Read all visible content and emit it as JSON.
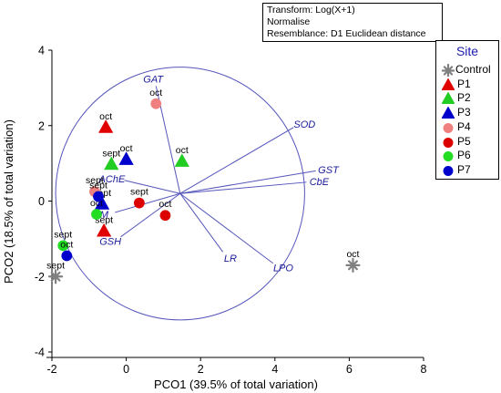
{
  "chart_data": {
    "type": "scatter",
    "info": [
      "Transform: Log(X+1)",
      "Normalise",
      "Resemblance: D1 Euclidean distance"
    ],
    "xlabel": "PCO1 (39.5% of total variation)",
    "ylabel": "PCO2 (18.5% of total variation)",
    "xlim": [
      -2,
      8
    ],
    "ylim": [
      -4,
      4
    ],
    "xticks": [
      -2,
      0,
      2,
      4,
      6,
      8
    ],
    "yticks": [
      -4,
      -2,
      0,
      2,
      4
    ],
    "legend_title": "Site",
    "legend_position": "right",
    "series": [
      {
        "name": "Control",
        "marker": "star",
        "color": "#808080",
        "points": [
          {
            "x": -1.9,
            "y": -2.0,
            "label": "sept"
          },
          {
            "x": 6.1,
            "y": -1.7,
            "label": "oct"
          }
        ]
      },
      {
        "name": "P1",
        "marker": "triangle",
        "color": "#e00000",
        "points": [
          {
            "x": -0.55,
            "y": 1.95,
            "label": "oct"
          },
          {
            "x": -0.6,
            "y": -0.8,
            "label": "sept"
          }
        ]
      },
      {
        "name": "P2",
        "marker": "triangle",
        "color": "#22cc22",
        "points": [
          {
            "x": -0.4,
            "y": 0.97,
            "label": "sept"
          },
          {
            "x": 1.5,
            "y": 1.05,
            "label": "oct"
          }
        ]
      },
      {
        "name": "P3",
        "marker": "triangle",
        "color": "#0000cc",
        "points": [
          {
            "x": 0.0,
            "y": 1.1,
            "label": "oct"
          },
          {
            "x": -0.65,
            "y": -0.08,
            "label": "sept"
          }
        ]
      },
      {
        "name": "P4",
        "marker": "circle",
        "color": "#f08080",
        "points": [
          {
            "x": 0.8,
            "y": 2.58,
            "label": "oct"
          },
          {
            "x": -0.85,
            "y": 0.25,
            "label": "sept"
          }
        ]
      },
      {
        "name": "P5",
        "marker": "circle",
        "color": "#dd0000",
        "points": [
          {
            "x": 0.35,
            "y": -0.05,
            "label": "sept"
          },
          {
            "x": 1.05,
            "y": -0.38,
            "label": "oct"
          }
        ]
      },
      {
        "name": "P6",
        "marker": "circle",
        "color": "#22dd22",
        "points": [
          {
            "x": -0.8,
            "y": -0.35,
            "label": "oct"
          },
          {
            "x": -1.7,
            "y": -1.18,
            "label": "sept"
          }
        ]
      },
      {
        "name": "P7",
        "marker": "circle",
        "color": "#0000cc",
        "points": [
          {
            "x": -0.75,
            "y": 0.12,
            "label": "sept"
          },
          {
            "x": -1.6,
            "y": -1.45,
            "label": "oct"
          }
        ]
      }
    ],
    "vectors": [
      {
        "name": "GAT",
        "x": -0.65,
        "y": 2.85
      },
      {
        "name": "SOD",
        "x": 3.05,
        "y": 1.75
      },
      {
        "name": "GST",
        "x": 3.65,
        "y": 0.6
      },
      {
        "name": "CbE",
        "x": 3.4,
        "y": 0.3
      },
      {
        "name": "AChE",
        "x": -1.5,
        "y": 0.35
      },
      {
        "name": "IM",
        "x": -1.75,
        "y": -0.5
      },
      {
        "name": "GSH",
        "x": -1.6,
        "y": -1.15
      },
      {
        "name": "LR",
        "x": 1.15,
        "y": -1.55
      },
      {
        "name": "LPO",
        "x": 2.5,
        "y": -1.85
      }
    ],
    "vector_origin": [
      1.45,
      0.2
    ],
    "circle_radius": 3.35
  }
}
